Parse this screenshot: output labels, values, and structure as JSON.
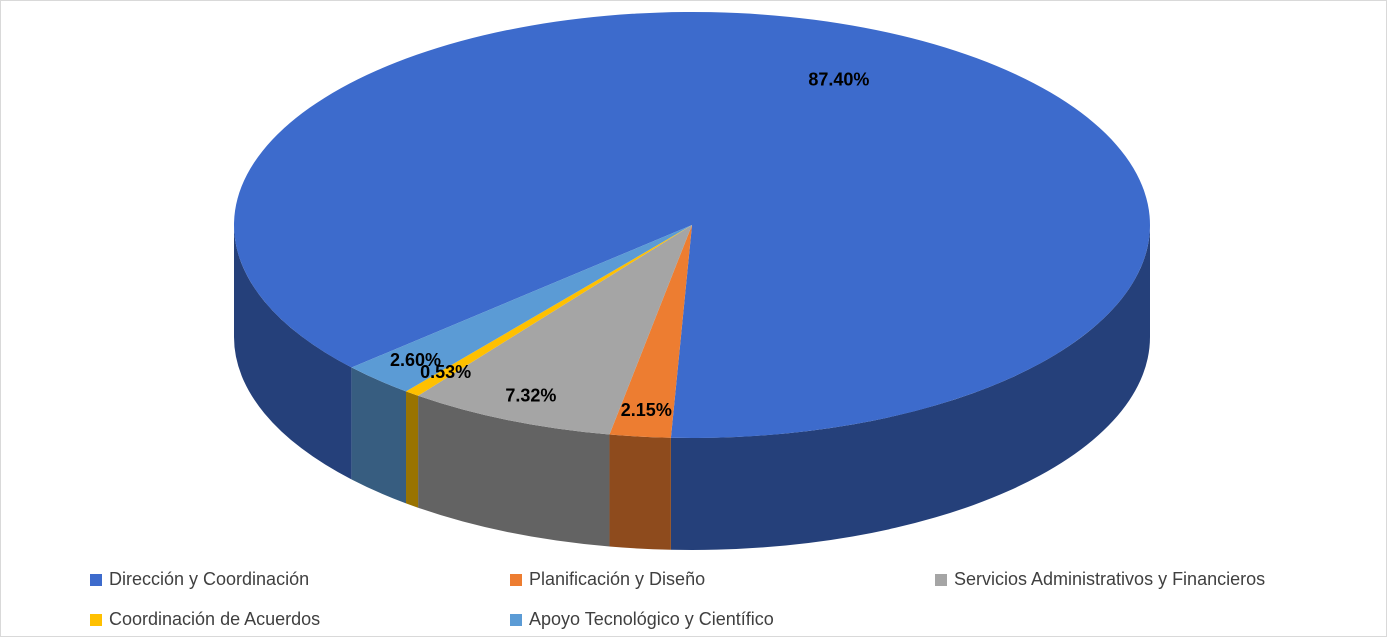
{
  "chart_data": {
    "type": "pie3d",
    "categories": [
      "Dirección y Coordinación",
      "Planificación y Diseño",
      "Servicios Administrativos y Financieros",
      "Coordinación de Acuerdos",
      "Apoyo Tecnológico y Científico"
    ],
    "values": [
      87.4,
      2.15,
      7.32,
      0.53,
      2.6
    ],
    "value_labels": [
      "87.40%",
      "2.15%",
      "7.32%",
      "0.53%",
      "2.60%"
    ],
    "colors": [
      "#3d6bcc",
      "#ed7d31",
      "#a5a5a5",
      "#ffc000",
      "#5b9bd5"
    ],
    "legend": "bottom"
  }
}
